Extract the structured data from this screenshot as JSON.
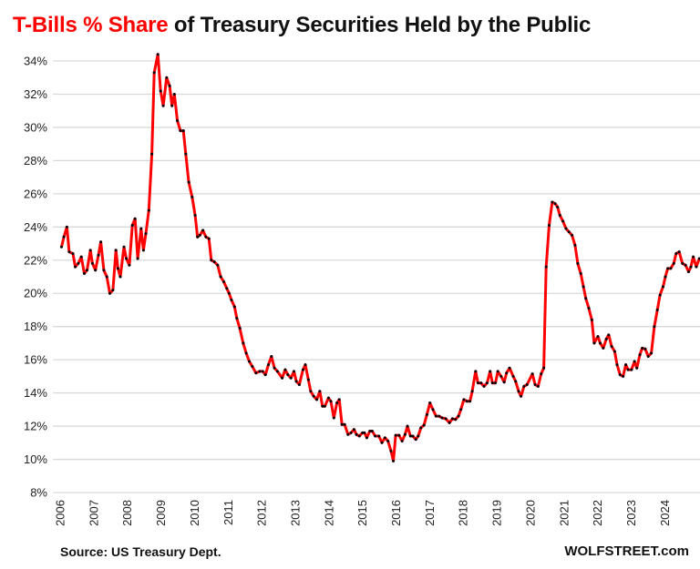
{
  "title": {
    "highlight": "T-Bills % Share",
    "rest": " of Treasury Securities Held by the Public"
  },
  "source": "Source: US Treasury Dept.",
  "brand": "WOLFSTREET.com",
  "colors": {
    "line": "#ff0000",
    "markers": "#000000",
    "highlight": "#ff0000",
    "grid": "#d9d9d9"
  },
  "chart_data": {
    "type": "line",
    "title": "T-Bills % Share of Treasury Securities Held by the Public",
    "xlabel": "",
    "ylabel": "",
    "ylim": [
      8,
      34
    ],
    "xlim": [
      2006,
      2025
    ],
    "grid": "horizontal",
    "yticks": [
      "8%",
      "10%",
      "12%",
      "14%",
      "16%",
      "18%",
      "20%",
      "22%",
      "24%",
      "26%",
      "28%",
      "30%",
      "32%",
      "34%"
    ],
    "xticks": [
      "2006",
      "2007",
      "2008",
      "2009",
      "2010",
      "2011",
      "2012",
      "2013",
      "2014",
      "2015",
      "2016",
      "2017",
      "2018",
      "2019",
      "2020",
      "2021",
      "2022",
      "2023",
      "2024"
    ],
    "series": [
      {
        "points": [
          [
            2006.04,
            22.8
          ],
          [
            2006.11,
            23.4
          ],
          [
            2006.2,
            24.0
          ],
          [
            2006.27,
            22.5
          ],
          [
            2006.38,
            22.4
          ],
          [
            2006.45,
            21.6
          ],
          [
            2006.54,
            21.8
          ],
          [
            2006.63,
            22.2
          ],
          [
            2006.72,
            21.2
          ],
          [
            2006.8,
            21.4
          ],
          [
            2006.9,
            22.6
          ],
          [
            2006.96,
            21.8
          ],
          [
            2007.05,
            21.4
          ],
          [
            2007.14,
            22.3
          ],
          [
            2007.21,
            23.1
          ],
          [
            2007.3,
            21.4
          ],
          [
            2007.39,
            21.0
          ],
          [
            2007.48,
            20.0
          ],
          [
            2007.57,
            20.2
          ],
          [
            2007.66,
            22.6
          ],
          [
            2007.72,
            21.5
          ],
          [
            2007.79,
            21.0
          ],
          [
            2007.9,
            22.8
          ],
          [
            2007.97,
            22.1
          ],
          [
            2008.06,
            21.7
          ],
          [
            2008.15,
            24.1
          ],
          [
            2008.23,
            24.5
          ],
          [
            2008.31,
            22.1
          ],
          [
            2008.41,
            23.9
          ],
          [
            2008.48,
            22.6
          ],
          [
            2008.55,
            23.6
          ],
          [
            2008.64,
            25.0
          ],
          [
            2008.73,
            28.4
          ],
          [
            2008.8,
            33.3
          ],
          [
            2008.91,
            34.4
          ],
          [
            2008.99,
            32.2
          ],
          [
            2009.07,
            31.3
          ],
          [
            2009.17,
            33.0
          ],
          [
            2009.26,
            32.5
          ],
          [
            2009.33,
            31.3
          ],
          [
            2009.4,
            32.0
          ],
          [
            2009.49,
            30.4
          ],
          [
            2009.58,
            29.8
          ],
          [
            2009.67,
            29.8
          ],
          [
            2009.74,
            28.4
          ],
          [
            2009.83,
            26.7
          ],
          [
            2009.93,
            25.8
          ],
          [
            2010.02,
            24.7
          ],
          [
            2010.09,
            23.4
          ],
          [
            2010.16,
            23.5
          ],
          [
            2010.25,
            23.8
          ],
          [
            2010.34,
            23.4
          ],
          [
            2010.43,
            23.3
          ],
          [
            2010.5,
            22.0
          ],
          [
            2010.59,
            21.9
          ],
          [
            2010.69,
            21.7
          ],
          [
            2010.78,
            21.0
          ],
          [
            2010.87,
            20.7
          ],
          [
            2010.96,
            20.3
          ],
          [
            2011.03,
            20.0
          ],
          [
            2011.1,
            19.6
          ],
          [
            2011.19,
            19.2
          ],
          [
            2011.26,
            18.5
          ],
          [
            2011.35,
            17.9
          ],
          [
            2011.45,
            17.0
          ],
          [
            2011.54,
            16.4
          ],
          [
            2011.63,
            15.9
          ],
          [
            2011.72,
            15.6
          ],
          [
            2011.83,
            15.2
          ],
          [
            2011.94,
            15.3
          ],
          [
            2012.03,
            15.3
          ],
          [
            2012.11,
            15.1
          ],
          [
            2012.2,
            15.7
          ],
          [
            2012.29,
            16.2
          ],
          [
            2012.38,
            15.5
          ],
          [
            2012.47,
            15.3
          ],
          [
            2012.61,
            14.9
          ],
          [
            2012.7,
            15.4
          ],
          [
            2012.78,
            15.1
          ],
          [
            2012.87,
            14.9
          ],
          [
            2012.96,
            15.3
          ],
          [
            2013.03,
            14.7
          ],
          [
            2013.12,
            14.5
          ],
          [
            2013.23,
            15.4
          ],
          [
            2013.3,
            15.7
          ],
          [
            2013.39,
            14.8
          ],
          [
            2013.46,
            14.1
          ],
          [
            2013.55,
            13.8
          ],
          [
            2013.64,
            13.6
          ],
          [
            2013.73,
            14.1
          ],
          [
            2013.81,
            13.2
          ],
          [
            2013.88,
            13.2
          ],
          [
            2013.99,
            13.7
          ],
          [
            2014.06,
            13.5
          ],
          [
            2014.15,
            12.5
          ],
          [
            2014.24,
            13.4
          ],
          [
            2014.31,
            13.6
          ],
          [
            2014.39,
            12.1
          ],
          [
            2014.47,
            12.1
          ],
          [
            2014.57,
            11.5
          ],
          [
            2014.66,
            11.6
          ],
          [
            2014.75,
            11.8
          ],
          [
            2014.82,
            11.5
          ],
          [
            2014.91,
            11.4
          ],
          [
            2015.0,
            11.6
          ],
          [
            2015.06,
            11.6
          ],
          [
            2015.13,
            11.3
          ],
          [
            2015.22,
            11.7
          ],
          [
            2015.29,
            11.7
          ],
          [
            2015.38,
            11.4
          ],
          [
            2015.49,
            11.4
          ],
          [
            2015.58,
            11.0
          ],
          [
            2015.67,
            11.3
          ],
          [
            2015.76,
            11.1
          ],
          [
            2015.85,
            10.5
          ],
          [
            2015.92,
            9.9
          ],
          [
            2015.99,
            11.45
          ],
          [
            2016.09,
            11.45
          ],
          [
            2016.18,
            11.1
          ],
          [
            2016.27,
            11.5
          ],
          [
            2016.34,
            12.0
          ],
          [
            2016.43,
            11.4
          ],
          [
            2016.5,
            11.4
          ],
          [
            2016.59,
            11.2
          ],
          [
            2016.66,
            11.4
          ],
          [
            2016.74,
            11.9
          ],
          [
            2016.83,
            12.05
          ],
          [
            2016.92,
            12.7
          ],
          [
            2017.01,
            13.4
          ],
          [
            2017.1,
            13.0
          ],
          [
            2017.19,
            12.6
          ],
          [
            2017.28,
            12.6
          ],
          [
            2017.37,
            12.5
          ],
          [
            2017.48,
            12.45
          ],
          [
            2017.59,
            12.2
          ],
          [
            2017.68,
            12.45
          ],
          [
            2017.77,
            12.4
          ],
          [
            2017.86,
            12.6
          ],
          [
            2017.93,
            13.0
          ],
          [
            2018.02,
            13.6
          ],
          [
            2018.11,
            13.5
          ],
          [
            2018.2,
            13.5
          ],
          [
            2018.27,
            14.1
          ],
          [
            2018.37,
            15.3
          ],
          [
            2018.44,
            14.6
          ],
          [
            2018.53,
            14.6
          ],
          [
            2018.62,
            14.4
          ],
          [
            2018.71,
            14.6
          ],
          [
            2018.8,
            15.3
          ],
          [
            2018.87,
            14.6
          ],
          [
            2018.96,
            14.6
          ],
          [
            2019.03,
            15.3
          ],
          [
            2019.13,
            15.0
          ],
          [
            2019.22,
            14.65
          ],
          [
            2019.29,
            15.2
          ],
          [
            2019.38,
            15.5
          ],
          [
            2019.49,
            15.0
          ],
          [
            2019.56,
            14.7
          ],
          [
            2019.65,
            14.1
          ],
          [
            2019.72,
            13.8
          ],
          [
            2019.81,
            14.4
          ],
          [
            2019.9,
            14.5
          ],
          [
            2020.06,
            15.15
          ],
          [
            2020.14,
            14.5
          ],
          [
            2020.23,
            14.4
          ],
          [
            2020.32,
            15.15
          ],
          [
            2020.4,
            15.5
          ],
          [
            2020.47,
            21.6
          ],
          [
            2020.56,
            24.1
          ],
          [
            2020.65,
            25.5
          ],
          [
            2020.74,
            25.4
          ],
          [
            2020.81,
            25.2
          ],
          [
            2020.88,
            24.7
          ],
          [
            2020.97,
            24.35
          ],
          [
            2021.06,
            23.9
          ],
          [
            2021.15,
            23.7
          ],
          [
            2021.24,
            23.5
          ],
          [
            2021.33,
            22.9
          ],
          [
            2021.41,
            21.8
          ],
          [
            2021.5,
            21.2
          ],
          [
            2021.58,
            20.4
          ],
          [
            2021.65,
            19.7
          ],
          [
            2021.74,
            19.1
          ],
          [
            2021.83,
            18.4
          ],
          [
            2021.9,
            17.0
          ],
          [
            2022.01,
            17.4
          ],
          [
            2022.08,
            17.0
          ],
          [
            2022.17,
            16.7
          ],
          [
            2022.26,
            17.25
          ],
          [
            2022.33,
            17.5
          ],
          [
            2022.42,
            16.8
          ],
          [
            2022.51,
            16.5
          ],
          [
            2022.58,
            15.7
          ],
          [
            2022.67,
            15.1
          ],
          [
            2022.76,
            15.0
          ],
          [
            2022.84,
            15.7
          ],
          [
            2022.91,
            15.4
          ],
          [
            2023.01,
            15.4
          ],
          [
            2023.1,
            15.9
          ],
          [
            2023.17,
            15.5
          ],
          [
            2023.26,
            16.3
          ],
          [
            2023.33,
            16.7
          ],
          [
            2023.42,
            16.65
          ],
          [
            2023.51,
            16.2
          ],
          [
            2023.6,
            16.4
          ],
          [
            2023.69,
            18.0
          ],
          [
            2023.78,
            19.0
          ],
          [
            2023.86,
            19.9
          ],
          [
            2023.95,
            20.4
          ],
          [
            2024.02,
            21.0
          ],
          [
            2024.09,
            21.5
          ],
          [
            2024.18,
            21.5
          ],
          [
            2024.27,
            21.8
          ],
          [
            2024.34,
            22.4
          ],
          [
            2024.43,
            22.5
          ],
          [
            2024.53,
            21.8
          ],
          [
            2024.62,
            21.7
          ],
          [
            2024.71,
            21.3
          ],
          [
            2024.78,
            21.6
          ],
          [
            2024.85,
            22.2
          ],
          [
            2024.94,
            21.6
          ],
          [
            2025.03,
            22.1
          ]
        ]
      }
    ]
  }
}
